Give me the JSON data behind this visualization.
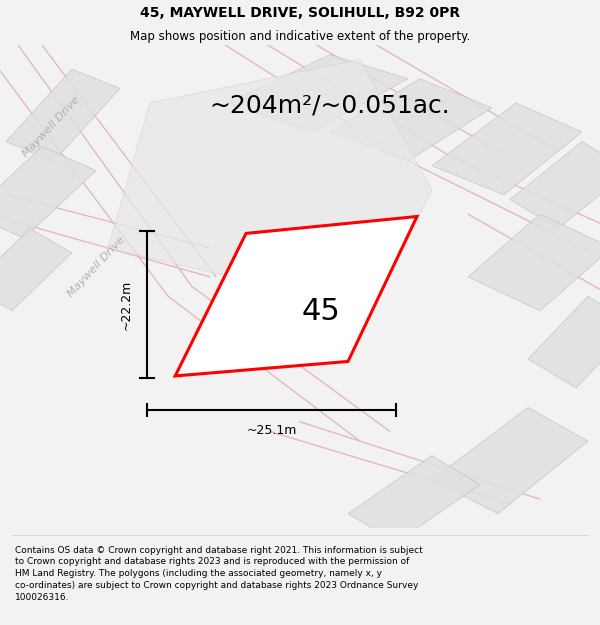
{
  "title": "45, MAYWELL DRIVE, SOLIHULL, B92 0PR",
  "subtitle": "Map shows position and indicative extent of the property.",
  "footer": "Contains OS data © Crown copyright and database right 2021. This information is subject\nto Crown copyright and database rights 2023 and is reproduced with the permission of\nHM Land Registry. The polygons (including the associated geometry, namely x, y\nco-ordinates) are subject to Crown copyright and database rights 2023 Ordnance Survey\n100026316.",
  "area_label": "~204m²/~0.051ac.",
  "plot_number": "45",
  "width_label": "~25.1m",
  "height_label": "~22.2m",
  "bg_color": "#f2f2f2",
  "map_bg": "#ffffff",
  "road_label": "Maywell Drive",
  "plot_color": "#ff0000",
  "figure_width": 6.0,
  "figure_height": 6.25,
  "title_fontsize": 10,
  "subtitle_fontsize": 8.5,
  "footer_fontsize": 6.5,
  "area_fontsize": 18,
  "number_fontsize": 22,
  "dim_fontsize": 9,
  "road_fontsize": 8,
  "road_color": "#e8b8b8",
  "block_light": "#e0e0e0",
  "block_mid": "#d0d0d0",
  "block_edge": "#c0c0c0"
}
